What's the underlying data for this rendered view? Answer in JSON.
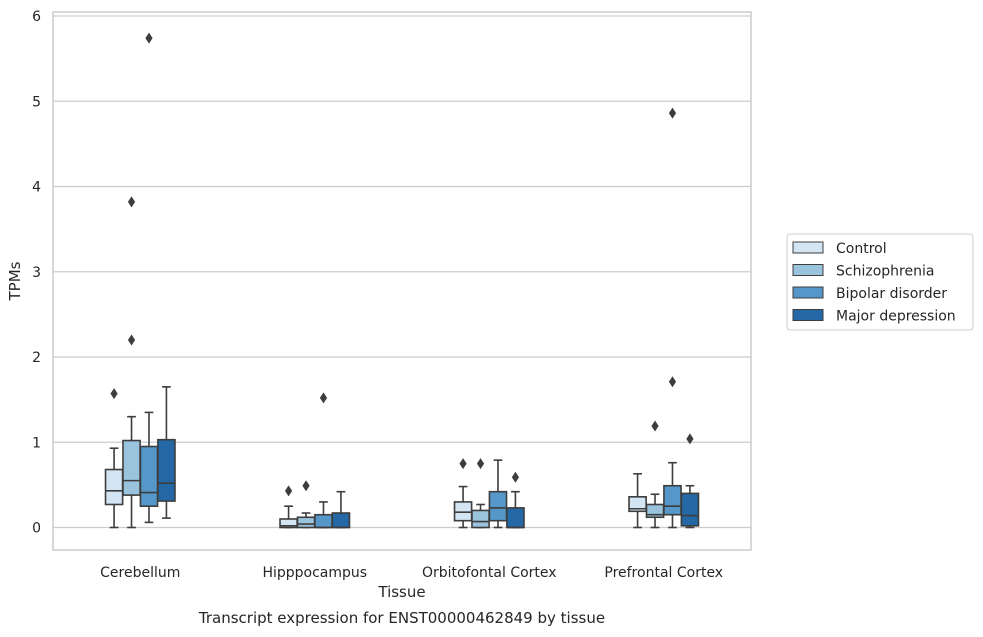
{
  "chart_data": {
    "type": "box",
    "xlabel": "Tissue",
    "ylabel": "TPMs",
    "caption": "Transcript expression for ENST00000462849 by tissue",
    "categories": [
      "Cerebellum",
      "Hipppocampus",
      "Orbitofontal Cortex",
      "Prefrontal Cortex"
    ],
    "ylim": [
      -0.27,
      6.05
    ],
    "yticks": [
      "0",
      "1",
      "2",
      "3",
      "4",
      "5",
      "6"
    ],
    "grid": "horizontal",
    "legend_position": "right",
    "series": [
      {
        "name": "Control",
        "color": "#d3e4f3",
        "boxes": [
          {
            "whislo": 0.0,
            "q1": 0.27,
            "med": 0.43,
            "q3": 0.68,
            "whishi": 0.93,
            "fliers": [
              1.57
            ]
          },
          {
            "whislo": 0.0,
            "q1": 0.0,
            "med": 0.02,
            "q3": 0.1,
            "whishi": 0.25,
            "fliers": [
              0.43
            ]
          },
          {
            "whislo": 0.0,
            "q1": 0.08,
            "med": 0.18,
            "q3": 0.3,
            "whishi": 0.48,
            "fliers": [
              0.75
            ]
          },
          {
            "whislo": 0.0,
            "q1": 0.19,
            "med": 0.22,
            "q3": 0.36,
            "whishi": 0.63,
            "fliers": []
          }
        ]
      },
      {
        "name": "Schizophrenia",
        "color": "#9ac3de",
        "boxes": [
          {
            "whislo": 0.0,
            "q1": 0.38,
            "med": 0.55,
            "q3": 1.02,
            "whishi": 1.3,
            "fliers": [
              2.2,
              3.82
            ]
          },
          {
            "whislo": 0.0,
            "q1": 0.0,
            "med": 0.04,
            "q3": 0.12,
            "whishi": 0.17,
            "fliers": [
              0.49
            ]
          },
          {
            "whislo": 0.0,
            "q1": 0.0,
            "med": 0.07,
            "q3": 0.2,
            "whishi": 0.27,
            "fliers": [
              0.75
            ]
          },
          {
            "whislo": 0.0,
            "q1": 0.12,
            "med": 0.15,
            "q3": 0.27,
            "whishi": 0.39,
            "fliers": [
              1.19
            ]
          }
        ]
      },
      {
        "name": "Bipolar disorder",
        "color": "#5497c8",
        "boxes": [
          {
            "whislo": 0.06,
            "q1": 0.25,
            "med": 0.41,
            "q3": 0.95,
            "whishi": 1.35,
            "fliers": [
              5.74
            ]
          },
          {
            "whislo": 0.0,
            "q1": 0.0,
            "med": 0.0,
            "q3": 0.15,
            "whishi": 0.3,
            "fliers": [
              1.52
            ]
          },
          {
            "whislo": 0.0,
            "q1": 0.08,
            "med": 0.23,
            "q3": 0.42,
            "whishi": 0.79,
            "fliers": []
          },
          {
            "whislo": 0.0,
            "q1": 0.15,
            "med": 0.25,
            "q3": 0.49,
            "whishi": 0.76,
            "fliers": [
              1.71,
              4.86
            ]
          }
        ]
      },
      {
        "name": "Major depression",
        "color": "#2469a6",
        "boxes": [
          {
            "whislo": 0.11,
            "q1": 0.31,
            "med": 0.52,
            "q3": 1.03,
            "whishi": 1.65,
            "fliers": []
          },
          {
            "whislo": 0.0,
            "q1": 0.0,
            "med": 0.0,
            "q3": 0.17,
            "whishi": 0.42,
            "fliers": []
          },
          {
            "whislo": 0.0,
            "q1": 0.0,
            "med": 0.0,
            "q3": 0.23,
            "whishi": 0.42,
            "fliers": [
              0.59
            ]
          },
          {
            "whislo": 0.0,
            "q1": 0.02,
            "med": 0.14,
            "q3": 0.4,
            "whishi": 0.49,
            "fliers": [
              1.04
            ]
          }
        ]
      }
    ]
  }
}
